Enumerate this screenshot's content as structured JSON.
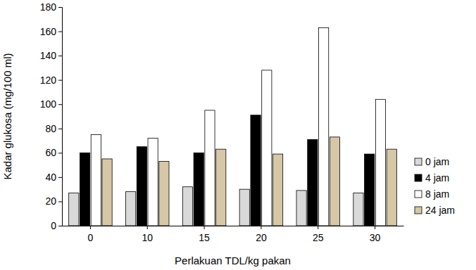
{
  "chart_data": {
    "type": "bar",
    "x_label": "Perlakuan TDL/kg pakan",
    "y_label": "Kadar glukosa (mg/100 ml)",
    "categories": [
      "0",
      "10",
      "15",
      "20",
      "25",
      "30"
    ],
    "series": [
      {
        "name": "0 jam",
        "color": "#d9d9d9",
        "values": [
          27,
          28,
          32,
          30,
          29,
          27
        ]
      },
      {
        "name": "4 jam",
        "color": "#000000",
        "values": [
          60,
          65,
          60,
          91,
          71,
          59
        ]
      },
      {
        "name": "8 jam",
        "color": "#ffffff",
        "values": [
          75,
          72,
          95,
          128,
          163,
          104
        ]
      },
      {
        "name": "24 jam",
        "color": "#d6c7a6",
        "values": [
          55,
          53,
          63,
          59,
          73,
          63
        ]
      }
    ],
    "ylim": [
      0,
      180
    ],
    "yticks": [
      0,
      20,
      40,
      60,
      80,
      100,
      120,
      140,
      160,
      180
    ],
    "grid": false,
    "legend": "right"
  }
}
